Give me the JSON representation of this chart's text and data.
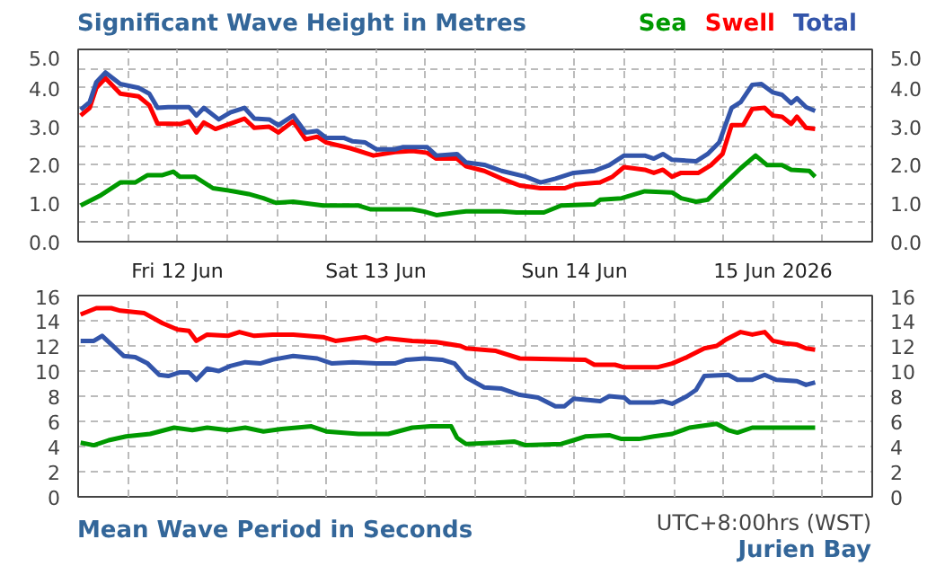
{
  "chart_data": [
    {
      "type": "line",
      "title": "Significant Wave Height in Metres",
      "legend": "top right",
      "grid": true,
      "xlim": [
        "2026-06-12T00:00",
        "2026-06-16T00:00"
      ],
      "xticks": [
        {
          "value": "2026-06-12T00:00",
          "label": null
        },
        {
          "value": "2026-06-12T06:00",
          "label": null
        },
        {
          "value": "2026-06-12T12:00",
          "label": "Fri 12 Jun"
        },
        {
          "value": "2026-06-12T18:00",
          "label": null
        },
        {
          "value": "2026-06-13T00:00",
          "label": null
        },
        {
          "value": "2026-06-13T06:00",
          "label": null
        },
        {
          "value": "2026-06-13T12:00",
          "label": "Sat 13 Jun"
        },
        {
          "value": "2026-06-13T18:00",
          "label": null
        },
        {
          "value": "2026-06-14T00:00",
          "label": null
        },
        {
          "value": "2026-06-14T06:00",
          "label": null
        },
        {
          "value": "2026-06-14T12:00",
          "label": "Sun 14 Jun"
        },
        {
          "value": "2026-06-14T18:00",
          "label": null
        },
        {
          "value": "2026-06-15T00:00",
          "label": null
        },
        {
          "value": "2026-06-15T06:00",
          "label": null
        },
        {
          "value": "2026-06-15T12:00",
          "label": "15 Jun 2026"
        },
        {
          "value": "2026-06-15T18:00",
          "label": null
        },
        {
          "value": "2026-06-16T00:00",
          "label": null
        }
      ],
      "ylim": [
        0,
        5
      ],
      "yticks": [
        {
          "value": 0,
          "label": "0.0"
        },
        {
          "value": 0.5,
          "label": null
        },
        {
          "value": 1,
          "label": "1.0"
        },
        {
          "value": 1.5,
          "label": null
        },
        {
          "value": 2,
          "label": "2.0"
        },
        {
          "value": 2.5,
          "label": null
        },
        {
          "value": 3,
          "label": "3.0"
        },
        {
          "value": 3.5,
          "label": null
        },
        {
          "value": 4,
          "label": "4.0"
        },
        {
          "value": 4.5,
          "label": null
        },
        {
          "value": 5,
          "label": "5.0"
        }
      ],
      "y2lim": [
        0,
        5
      ],
      "y2ticks": [
        {
          "value": 0,
          "label": "0.0"
        },
        {
          "value": 0.5,
          "label": null
        },
        {
          "value": 1,
          "label": "1.0"
        },
        {
          "value": 1.5,
          "label": null
        },
        {
          "value": 2,
          "label": "2.0"
        },
        {
          "value": 2.5,
          "label": null
        },
        {
          "value": 3,
          "label": "3.0"
        },
        {
          "value": 3.5,
          "label": null
        },
        {
          "value": 4,
          "label": "4.0"
        },
        {
          "value": 4.5,
          "label": null
        },
        {
          "value": 5,
          "label": "5.0"
        }
      ],
      "series": [
        {
          "name": "Sea",
          "color": "#009900",
          "x": [
            "2026-06-12T00:18",
            "2026-06-12T02:36",
            "2026-06-12T05:06",
            "2026-06-12T06:54",
            "2026-06-12T08:24",
            "2026-06-12T10:12",
            "2026-06-12T11:30",
            "2026-06-12T12:18",
            "2026-06-12T14:06",
            "2026-06-12T16:18",
            "2026-06-12T18:48",
            "2026-06-12T20:36",
            "2026-06-12T22:24",
            "2026-06-12T23:54",
            "2026-06-13T02:00",
            "2026-06-13T05:36",
            "2026-06-13T09:54",
            "2026-06-13T11:24",
            "2026-06-13T16:24",
            "2026-06-13T17:54",
            "2026-06-13T19:18",
            "2026-06-13T22:54",
            "2026-06-14T03:12",
            "2026-06-14T05:00",
            "2026-06-14T08:18",
            "2026-06-14T10:24",
            "2026-06-14T14:24",
            "2026-06-14T15:06",
            "2026-06-14T17:42",
            "2026-06-14T20:30",
            "2026-06-14T23:48",
            "2026-06-15T00:54",
            "2026-06-15T02:42",
            "2026-06-15T04:06",
            "2026-06-15T05:54",
            "2026-06-15T08:06",
            "2026-06-15T09:54",
            "2026-06-15T11:18",
            "2026-06-15T13:06",
            "2026-06-15T14:12",
            "2026-06-15T16:24",
            "2026-06-15T17:06"
          ],
          "values": [
            0.94,
            1.19,
            1.54,
            1.54,
            1.73,
            1.73,
            1.82,
            1.69,
            1.69,
            1.39,
            1.31,
            1.24,
            1.13,
            1.01,
            1.04,
            0.94,
            0.94,
            0.84,
            0.84,
            0.78,
            0.69,
            0.79,
            0.79,
            0.76,
            0.76,
            0.94,
            0.97,
            1.09,
            1.13,
            1.31,
            1.28,
            1.13,
            1.04,
            1.09,
            1.46,
            1.91,
            2.24,
            1.99,
            1.99,
            1.87,
            1.84,
            1.69
          ]
        },
        {
          "name": "Swell",
          "color": "#ff0000",
          "x": [
            "2026-06-12T00:18",
            "2026-06-12T01:24",
            "2026-06-12T02:12",
            "2026-06-12T03:18",
            "2026-06-12T05:06",
            "2026-06-12T07:18",
            "2026-06-12T08:36",
            "2026-06-12T09:36",
            "2026-06-12T12:18",
            "2026-06-12T13:24",
            "2026-06-12T14:18",
            "2026-06-12T15:12",
            "2026-06-12T16:36",
            "2026-06-12T18:24",
            "2026-06-12T20:06",
            "2026-06-12T21:18",
            "2026-06-12T23:06",
            "2026-06-13T00:12",
            "2026-06-13T02:00",
            "2026-06-13T03:30",
            "2026-06-13T04:54",
            "2026-06-13T06:00",
            "2026-06-13T08:54",
            "2026-06-13T11:42",
            "2026-06-13T14:18",
            "2026-06-13T16:24",
            "2026-06-13T18:12",
            "2026-06-13T19:18",
            "2026-06-13T21:48",
            "2026-06-13T22:54",
            "2026-06-14T01:06",
            "2026-06-14T03:12",
            "2026-06-14T05:24",
            "2026-06-14T07:54",
            "2026-06-14T10:48",
            "2026-06-14T12:12",
            "2026-06-14T15:06",
            "2026-06-14T16:36",
            "2026-06-14T18:00",
            "2026-06-14T20:30",
            "2026-06-14T21:36",
            "2026-06-14T22:42",
            "2026-06-14T23:48",
            "2026-06-15T00:54",
            "2026-06-15T03:00",
            "2026-06-15T04:30",
            "2026-06-15T05:54",
            "2026-06-15T07:00",
            "2026-06-15T08:24",
            "2026-06-15T09:30",
            "2026-06-15T11:00",
            "2026-06-15T12:00",
            "2026-06-15T13:06",
            "2026-06-15T14:12",
            "2026-06-15T14:54",
            "2026-06-15T16:00",
            "2026-06-15T17:06"
          ],
          "values": [
            3.28,
            3.48,
            4.0,
            4.25,
            3.85,
            3.78,
            3.55,
            3.07,
            3.06,
            3.13,
            2.84,
            3.1,
            2.93,
            3.07,
            3.2,
            2.96,
            2.99,
            2.84,
            3.13,
            2.66,
            2.73,
            2.58,
            2.43,
            2.24,
            2.33,
            2.36,
            2.31,
            2.16,
            2.16,
            1.96,
            1.84,
            1.64,
            1.46,
            1.39,
            1.39,
            1.49,
            1.54,
            1.69,
            1.94,
            1.87,
            1.79,
            1.87,
            1.69,
            1.79,
            1.79,
            1.99,
            2.28,
            3.03,
            3.03,
            3.45,
            3.48,
            3.28,
            3.25,
            3.06,
            3.25,
            2.96,
            2.93
          ]
        },
        {
          "name": "Total",
          "color": "#3355aa",
          "x": [
            "2026-06-12T00:18",
            "2026-06-12T01:24",
            "2026-06-12T02:12",
            "2026-06-12T03:18",
            "2026-06-12T05:06",
            "2026-06-12T07:18",
            "2026-06-12T08:36",
            "2026-06-12T09:36",
            "2026-06-12T10:54",
            "2026-06-12T13:24",
            "2026-06-12T14:18",
            "2026-06-12T15:12",
            "2026-06-12T17:00",
            "2026-06-12T18:24",
            "2026-06-12T20:06",
            "2026-06-12T21:18",
            "2026-06-12T23:06",
            "2026-06-13T00:12",
            "2026-06-13T02:00",
            "2026-06-13T03:30",
            "2026-06-13T04:54",
            "2026-06-13T06:00",
            "2026-06-13T08:06",
            "2026-06-13T09:12",
            "2026-06-13T10:42",
            "2026-06-13T12:06",
            "2026-06-13T14:18",
            "2026-06-13T15:18",
            "2026-06-13T18:12",
            "2026-06-13T19:18",
            "2026-06-13T21:48",
            "2026-06-13T22:54",
            "2026-06-14T01:06",
            "2026-06-14T03:12",
            "2026-06-14T06:06",
            "2026-06-14T07:54",
            "2026-06-14T09:42",
            "2026-06-14T11:54",
            "2026-06-14T14:24",
            "2026-06-14T16:12",
            "2026-06-14T18:00",
            "2026-06-14T20:30",
            "2026-06-14T21:36",
            "2026-06-14T22:42",
            "2026-06-14T23:48",
            "2026-06-15T02:42",
            "2026-06-15T04:06",
            "2026-06-15T05:30",
            "2026-06-15T07:00",
            "2026-06-15T08:06",
            "2026-06-15T09:30",
            "2026-06-15T10:36",
            "2026-06-15T12:00",
            "2026-06-15T13:06",
            "2026-06-15T14:12",
            "2026-06-15T14:54",
            "2026-06-15T16:00",
            "2026-06-15T17:06"
          ],
          "values": [
            3.43,
            3.63,
            4.15,
            4.4,
            4.1,
            4.0,
            3.85,
            3.48,
            3.5,
            3.5,
            3.28,
            3.48,
            3.18,
            3.36,
            3.48,
            3.2,
            3.18,
            3.03,
            3.28,
            2.84,
            2.88,
            2.7,
            2.7,
            2.61,
            2.58,
            2.4,
            2.4,
            2.46,
            2.46,
            2.24,
            2.28,
            2.06,
            2.0,
            1.84,
            1.69,
            1.54,
            1.64,
            1.79,
            1.84,
            1.99,
            2.24,
            2.24,
            2.16,
            2.28,
            2.13,
            2.09,
            2.28,
            2.58,
            3.48,
            3.63,
            4.08,
            4.1,
            3.88,
            3.82,
            3.6,
            3.73,
            3.5,
            3.4
          ]
        }
      ]
    },
    {
      "type": "line",
      "title": "Mean Wave Period in Seconds",
      "grid": true,
      "tick_labels": "y",
      "annotations": [
        "UTC+8:00hrs (WST)",
        "Jurien Bay"
      ],
      "xlim": [
        "2026-06-12T00:00",
        "2026-06-16T00:00"
      ],
      "xticks": [
        {
          "value": "2026-06-12T00:00",
          "label": null
        },
        {
          "value": "2026-06-12T06:00",
          "label": null
        },
        {
          "value": "2026-06-12T12:00",
          "label": null
        },
        {
          "value": "2026-06-12T18:00",
          "label": null
        },
        {
          "value": "2026-06-13T00:00",
          "label": null
        },
        {
          "value": "2026-06-13T06:00",
          "label": null
        },
        {
          "value": "2026-06-13T12:00",
          "label": null
        },
        {
          "value": "2026-06-13T18:00",
          "label": null
        },
        {
          "value": "2026-06-14T00:00",
          "label": null
        },
        {
          "value": "2026-06-14T06:00",
          "label": null
        },
        {
          "value": "2026-06-14T12:00",
          "label": null
        },
        {
          "value": "2026-06-14T18:00",
          "label": null
        },
        {
          "value": "2026-06-15T00:00",
          "label": null
        },
        {
          "value": "2026-06-15T06:00",
          "label": null
        },
        {
          "value": "2026-06-15T12:00",
          "label": null
        },
        {
          "value": "2026-06-15T18:00",
          "label": null
        },
        {
          "value": "2026-06-16T00:00",
          "label": null
        }
      ],
      "ylim": [
        0,
        16
      ],
      "yticks": [
        0,
        2,
        4,
        6,
        8,
        10,
        12,
        14,
        16
      ],
      "y2lim": [
        0,
        16
      ],
      "y2ticks": [
        0,
        2,
        4,
        6,
        8,
        10,
        12,
        14,
        16
      ],
      "series": [
        {
          "color": "#009900",
          "x": [
            "2026-06-12T00:18",
            "2026-06-12T01:54",
            "2026-06-12T03:42",
            "2026-06-12T05:48",
            "2026-06-12T08:42",
            "2026-06-12T11:36",
            "2026-06-12T13:48",
            "2026-06-12T15:36",
            "2026-06-12T18:06",
            "2026-06-12T20:12",
            "2026-06-12T22:24",
            "2026-06-13T00:36",
            "2026-06-13T04:12",
            "2026-06-13T06:00",
            "2026-06-13T09:54",
            "2026-06-13T13:30",
            "2026-06-13T16:24",
            "2026-06-13T18:36",
            "2026-06-13T21:06",
            "2026-06-13T21:48",
            "2026-06-13T22:54",
            "2026-06-14T02:30",
            "2026-06-14T04:42",
            "2026-06-14T06:06",
            "2026-06-14T10:24",
            "2026-06-14T11:54",
            "2026-06-14T13:18",
            "2026-06-14T16:12",
            "2026-06-14T17:42",
            "2026-06-14T19:48",
            "2026-06-14T21:36",
            "2026-06-14T23:48",
            "2026-06-15T01:54",
            "2026-06-15T05:12",
            "2026-06-15T06:36",
            "2026-06-15T07:42",
            "2026-06-15T09:30",
            "2026-06-15T17:06"
          ],
          "values": [
            4.3,
            4.1,
            4.5,
            4.8,
            5.0,
            5.5,
            5.3,
            5.5,
            5.3,
            5.5,
            5.2,
            5.4,
            5.6,
            5.2,
            5.0,
            5.0,
            5.5,
            5.6,
            5.6,
            4.7,
            4.2,
            4.3,
            4.4,
            4.1,
            4.2,
            4.5,
            4.8,
            4.9,
            4.6,
            4.6,
            4.8,
            5.0,
            5.5,
            5.8,
            5.3,
            5.1,
            5.5,
            5.5
          ]
        },
        {
          "color": "#ff0000",
          "x": [
            "2026-06-12T00:18",
            "2026-06-12T02:12",
            "2026-06-12T04:00",
            "2026-06-12T05:06",
            "2026-06-12T08:00",
            "2026-06-12T10:12",
            "2026-06-12T12:00",
            "2026-06-12T13:24",
            "2026-06-12T14:18",
            "2026-06-12T15:36",
            "2026-06-12T18:06",
            "2026-06-12T19:30",
            "2026-06-12T21:18",
            "2026-06-12T23:30",
            "2026-06-13T02:00",
            "2026-06-13T05:36",
            "2026-06-13T07:06",
            "2026-06-13T10:42",
            "2026-06-13T12:06",
            "2026-06-13T13:12",
            "2026-06-13T16:24",
            "2026-06-13T19:18",
            "2026-06-13T22:12",
            "2026-06-13T22:54",
            "2026-06-14T02:30",
            "2026-06-14T05:24",
            "2026-06-14T13:18",
            "2026-06-14T14:24",
            "2026-06-14T16:54",
            "2026-06-14T18:00",
            "2026-06-14T22:00",
            "2026-06-14T23:48",
            "2026-06-15T01:36",
            "2026-06-15T03:42",
            "2026-06-15T05:12",
            "2026-06-15T06:18",
            "2026-06-15T08:06",
            "2026-06-15T09:30",
            "2026-06-15T11:00",
            "2026-06-15T12:00",
            "2026-06-15T13:30",
            "2026-06-15T14:54",
            "2026-06-15T16:00",
            "2026-06-15T17:06"
          ],
          "values": [
            14.5,
            15.0,
            15.0,
            14.8,
            14.6,
            13.8,
            13.3,
            13.2,
            12.4,
            12.9,
            12.8,
            13.1,
            12.8,
            12.9,
            12.9,
            12.7,
            12.4,
            12.7,
            12.4,
            12.6,
            12.4,
            12.3,
            12.0,
            11.8,
            11.6,
            11.0,
            10.9,
            10.5,
            10.5,
            10.3,
            10.3,
            10.6,
            11.1,
            11.8,
            12.0,
            12.5,
            13.1,
            12.9,
            13.1,
            12.4,
            12.2,
            12.1,
            11.8,
            11.7
          ]
        },
        {
          "color": "#3355aa",
          "x": [
            "2026-06-12T00:18",
            "2026-06-12T01:54",
            "2026-06-12T02:54",
            "2026-06-12T05:30",
            "2026-06-12T06:54",
            "2026-06-12T08:24",
            "2026-06-12T09:48",
            "2026-06-12T10:54",
            "2026-06-12T12:18",
            "2026-06-12T13:24",
            "2026-06-12T14:18",
            "2026-06-12T15:36",
            "2026-06-12T17:00",
            "2026-06-12T18:24",
            "2026-06-12T20:12",
            "2026-06-12T22:00",
            "2026-06-12T23:30",
            "2026-06-13T02:00",
            "2026-06-13T04:54",
            "2026-06-13T06:42",
            "2026-06-13T09:12",
            "2026-06-13T12:06",
            "2026-06-13T14:18",
            "2026-06-13T15:42",
            "2026-06-13T17:54",
            "2026-06-13T20:00",
            "2026-06-13T21:30",
            "2026-06-13T22:54",
            "2026-06-14T01:06",
            "2026-06-14T03:12",
            "2026-06-14T05:24",
            "2026-06-14T07:36",
            "2026-06-14T09:42",
            "2026-06-14T10:48",
            "2026-06-14T11:54",
            "2026-06-14T15:06",
            "2026-06-14T16:12",
            "2026-06-14T18:00",
            "2026-06-14T18:42",
            "2026-06-14T21:36",
            "2026-06-14T22:42",
            "2026-06-14T23:48",
            "2026-06-15T01:36",
            "2026-06-15T02:42",
            "2026-06-15T03:42",
            "2026-06-15T06:36",
            "2026-06-15T07:42",
            "2026-06-15T09:30",
            "2026-06-15T11:00",
            "2026-06-15T12:24",
            "2026-06-15T14:54",
            "2026-06-15T16:00",
            "2026-06-15T17:06"
          ],
          "values": [
            12.4,
            12.4,
            12.8,
            11.2,
            11.1,
            10.6,
            9.7,
            9.6,
            9.9,
            9.9,
            9.3,
            10.2,
            10.0,
            10.4,
            10.7,
            10.6,
            10.9,
            11.2,
            11.0,
            10.6,
            10.7,
            10.6,
            10.6,
            10.9,
            11.0,
            10.9,
            10.6,
            9.5,
            8.7,
            8.6,
            8.1,
            7.9,
            7.2,
            7.2,
            7.8,
            7.6,
            8.0,
            7.9,
            7.5,
            7.5,
            7.6,
            7.4,
            8.0,
            8.5,
            9.6,
            9.7,
            9.3,
            9.3,
            9.7,
            9.3,
            9.2,
            8.9,
            9.1
          ]
        }
      ]
    }
  ]
}
